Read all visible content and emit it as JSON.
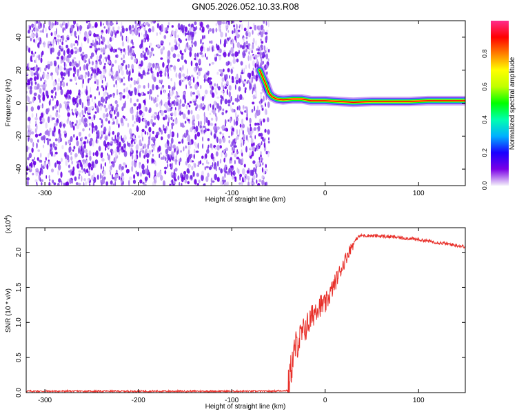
{
  "title": "GN05.2026.052.10.33.R08",
  "chart_data": [
    {
      "type": "heatmap",
      "xlabel": "Height of straight line (km)",
      "ylabel": "Frequency (Hz)",
      "xlim": [
        -320,
        150
      ],
      "ylim": [
        -50,
        50
      ],
      "x_ticks": [
        -300,
        -200,
        -100,
        0,
        100
      ],
      "y_ticks": [
        -40,
        -20,
        0,
        20,
        40
      ],
      "noise_region_x": [
        -320,
        -60
      ],
      "ridge": {
        "x": [
          -70,
          -64,
          -60,
          -57,
          -52,
          -45,
          -35,
          -25,
          -15,
          0,
          15,
          30,
          50,
          70,
          90,
          110,
          130,
          150
        ],
        "freq_hz": [
          20,
          12,
          6,
          4,
          2.5,
          2,
          2.5,
          2.5,
          1.5,
          1.5,
          1,
          0.5,
          1,
          1,
          1,
          1.5,
          1.5,
          1.5
        ]
      },
      "colorbar": {
        "label": "Normalized spectral amplitude",
        "range": [
          0.0,
          1.0
        ],
        "ticks": [
          "0.0",
          "0.2",
          "0.4",
          "0.6",
          "0.8"
        ],
        "colormap": [
          "#f4f0fa",
          "#7a00e6",
          "#1a00ff",
          "#00b0ff",
          "#00ffb0",
          "#00ff00",
          "#c0ff00",
          "#ffff00",
          "#ff8000",
          "#ff0000",
          "#ff2d8c"
        ]
      }
    },
    {
      "type": "line",
      "xlabel": "Height of straight line (km)",
      "ylabel": "SNR (10 * v/v)",
      "y_multiplier": "(x10^4)",
      "xlim": [
        -320,
        150
      ],
      "ylim": [
        0,
        23500
      ],
      "x_ticks": [
        -300,
        -200,
        -100,
        0,
        100
      ],
      "y_ticks": [
        0,
        5000,
        10000,
        15000,
        20000
      ],
      "y_tick_labels": [
        "0.0",
        "0.5",
        "1.0",
        "1.5",
        "2.0"
      ],
      "color": "#e8302a",
      "series": [
        {
          "x": [
            -320,
            -250,
            -150,
            -60,
            -40,
            -37,
            -32,
            -28,
            -22,
            -15,
            -10,
            -5,
            0,
            5,
            10,
            15,
            20,
            25,
            30,
            35,
            40,
            60,
            80,
            100,
            120,
            140,
            150
          ],
          "values": [
            200,
            200,
            200,
            200,
            300,
            3000,
            6500,
            7500,
            9000,
            10500,
            12000,
            12500,
            12500,
            14000,
            15500,
            17000,
            18500,
            20000,
            21200,
            22200,
            22400,
            22300,
            22100,
            21800,
            21400,
            21000,
            20800
          ]
        }
      ]
    }
  ]
}
